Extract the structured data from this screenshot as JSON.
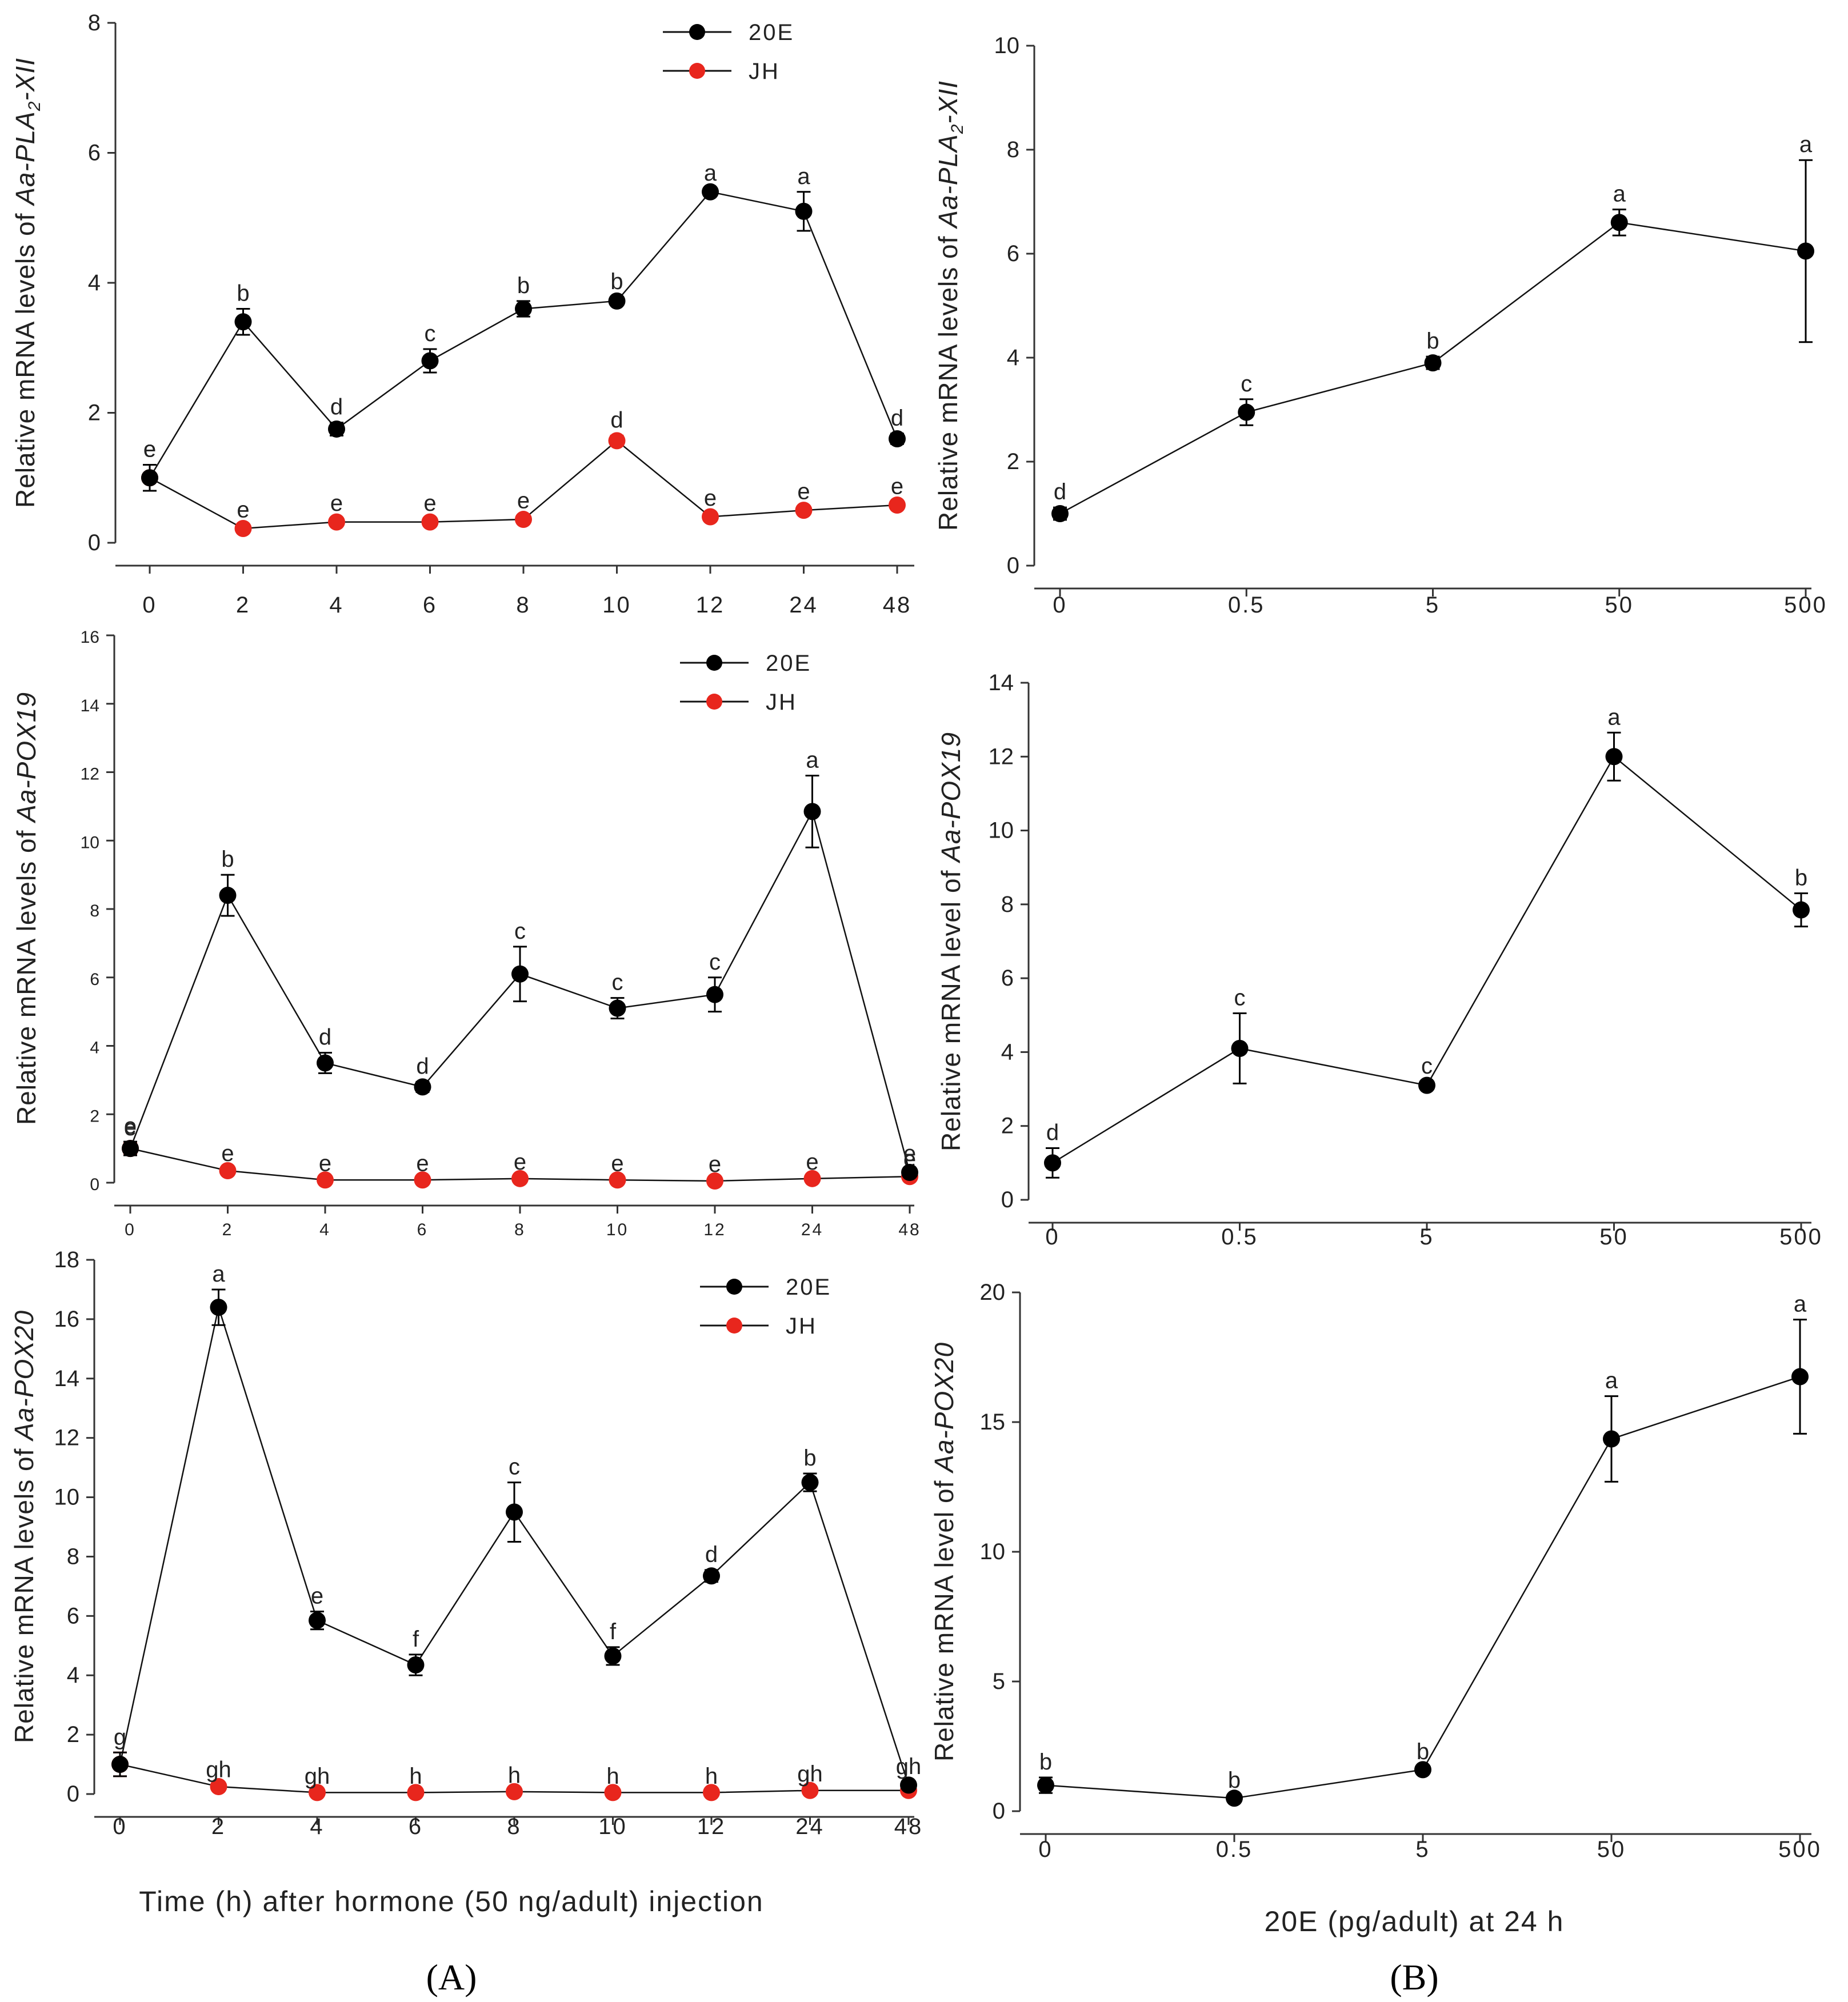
{
  "figure": {
    "panel_labels": [
      "(A)",
      "(B)"
    ],
    "colors": {
      "series_20E": "#000000",
      "series_JH": "#e8261d",
      "axis": "#333333"
    }
  },
  "chart_data": [
    {
      "id": "A1",
      "type": "line",
      "title": "",
      "ylabel_plain": "Relative mRNA levels of ",
      "ylabel_gene_prefix": "Aa-PLA",
      "ylabel_gene_sub": "2",
      "ylabel_gene_suffix": "-XII",
      "xlabel": "",
      "ylim": [
        0,
        8
      ],
      "yticks": [
        "0",
        "2",
        "4",
        "6",
        "8"
      ],
      "categories": [
        "0",
        "2",
        "4",
        "6",
        "8",
        "10",
        "12",
        "24",
        "48"
      ],
      "legend": [
        "20E",
        "JH"
      ],
      "series": [
        {
          "name": "20E",
          "values": [
            1.0,
            3.4,
            1.75,
            2.8,
            3.6,
            3.72,
            5.4,
            5.1,
            1.6
          ],
          "errors": [
            0.2,
            0.2,
            0.1,
            0.18,
            0.12,
            0.06,
            0.05,
            0.3,
            0.08
          ],
          "letters": [
            "e",
            "b",
            "d",
            "c",
            "b",
            "b",
            "a",
            "a",
            "d"
          ]
        },
        {
          "name": "JH",
          "values": [
            1.0,
            0.22,
            0.32,
            0.32,
            0.36,
            1.57,
            0.4,
            0.5,
            0.58
          ],
          "errors": [
            0.2,
            0.05,
            0.05,
            0.05,
            0.05,
            0.08,
            0.05,
            0.05,
            0.05
          ],
          "letters": [
            "e",
            "e",
            "e",
            "e",
            "e",
            "d",
            "e",
            "e",
            "e"
          ]
        }
      ]
    },
    {
      "id": "B1",
      "type": "line",
      "title": "",
      "ylabel_plain": "Relative mRNA levels of ",
      "ylabel_gene_prefix": "Aa-PLA",
      "ylabel_gene_sub": "2",
      "ylabel_gene_suffix": "-XII",
      "xlabel": "",
      "ylim": [
        0,
        10
      ],
      "yticks": [
        "0",
        "2",
        "4",
        "6",
        "8",
        "10"
      ],
      "categories": [
        "0",
        "0.5",
        "5",
        "50",
        "500"
      ],
      "series": [
        {
          "name": "20E",
          "values": [
            1.0,
            2.95,
            3.9,
            6.6,
            6.05
          ],
          "errors": [
            0.12,
            0.25,
            0.12,
            0.25,
            1.75
          ],
          "letters": [
            "d",
            "c",
            "b",
            "a",
            "a"
          ]
        }
      ]
    },
    {
      "id": "A2",
      "type": "line",
      "title": "",
      "ylabel_plain": "Relative mRNA levels of ",
      "ylabel_gene": "Aa-POX19",
      "xlabel": "",
      "ylim": [
        0,
        16
      ],
      "yticks": [
        "0",
        "2",
        "4",
        "6",
        "8",
        "10",
        "12",
        "14",
        "16"
      ],
      "categories": [
        "0",
        "2",
        "4",
        "6",
        "8",
        "10",
        "12",
        "24",
        "48"
      ],
      "legend": [
        "20E",
        "JH"
      ],
      "series": [
        {
          "name": "20E",
          "values": [
            1.0,
            8.4,
            3.5,
            2.8,
            6.1,
            5.1,
            5.5,
            10.85,
            0.3
          ],
          "errors": [
            0.2,
            0.6,
            0.3,
            0.15,
            0.8,
            0.3,
            0.5,
            1.05,
            0.1
          ],
          "letters": [
            "e",
            "b",
            "d",
            "d",
            "c",
            "c",
            "c",
            "a",
            "e"
          ]
        },
        {
          "name": "JH",
          "values": [
            1.0,
            0.35,
            0.08,
            0.08,
            0.12,
            0.08,
            0.05,
            0.12,
            0.18
          ],
          "errors": [
            0.15,
            0.05,
            0.03,
            0.03,
            0.03,
            0.03,
            0.03,
            0.03,
            0.05
          ],
          "letters": [
            "e",
            "e",
            "e",
            "e",
            "e",
            "e",
            "e",
            "e",
            "e"
          ]
        }
      ]
    },
    {
      "id": "B2",
      "type": "line",
      "title": "",
      "ylabel_plain": "Relative mRNA level of ",
      "ylabel_gene": "Aa-POX19",
      "xlabel": "",
      "ylim": [
        0,
        14
      ],
      "yticks": [
        "0",
        "2",
        "4",
        "6",
        "8",
        "10",
        "12",
        "14"
      ],
      "categories": [
        "0",
        "0.5",
        "5",
        "50",
        "500"
      ],
      "series": [
        {
          "name": "20E",
          "values": [
            1.0,
            4.1,
            3.1,
            12.0,
            7.85
          ],
          "errors": [
            0.4,
            0.95,
            0.1,
            0.65,
            0.45
          ],
          "letters": [
            "d",
            "c",
            "c",
            "a",
            "b"
          ]
        }
      ]
    },
    {
      "id": "A3",
      "type": "line",
      "title": "",
      "ylabel_plain": "Relative mRNA levels of ",
      "ylabel_gene": "Aa-POX20",
      "xlabel": "Time (h) after hormone (50 ng/adult) injection",
      "ylim": [
        0,
        18
      ],
      "yticks": [
        "0",
        "2",
        "4",
        "6",
        "8",
        "10",
        "12",
        "14",
        "16",
        "18"
      ],
      "categories": [
        "0",
        "2",
        "4",
        "6",
        "8",
        "10",
        "12",
        "24",
        "48"
      ],
      "legend": [
        "20E",
        "JH"
      ],
      "series": [
        {
          "name": "20E",
          "values": [
            1.0,
            16.4,
            5.85,
            4.35,
            9.5,
            4.65,
            7.35,
            10.5,
            0.3
          ],
          "errors": [
            0.4,
            0.6,
            0.3,
            0.35,
            1.0,
            0.3,
            0.2,
            0.3,
            0.1
          ],
          "letters": [
            "g",
            "a",
            "e",
            "f",
            "c",
            "f",
            "d",
            "b",
            "gh"
          ]
        },
        {
          "name": "JH",
          "values": [
            1.0,
            0.25,
            0.05,
            0.05,
            0.08,
            0.05,
            0.05,
            0.12,
            0.12
          ],
          "errors": [
            0.4,
            0.05,
            0.03,
            0.03,
            0.03,
            0.03,
            0.03,
            0.03,
            0.03
          ],
          "letters": [
            "",
            "gh",
            "gh",
            "h",
            "h",
            "h",
            "h",
            "gh",
            ""
          ]
        }
      ]
    },
    {
      "id": "B3",
      "type": "line",
      "title": "",
      "ylabel_plain": "Relative mRNA level of ",
      "ylabel_gene": "Aa-POX20",
      "xlabel": "20E (pg/adult) at 24 h",
      "ylim": [
        0,
        20
      ],
      "yticks": [
        "0",
        "5",
        "10",
        "15",
        "20"
      ],
      "categories": [
        "0",
        "0.5",
        "5",
        "50",
        "500"
      ],
      "series": [
        {
          "name": "20E",
          "values": [
            1.0,
            0.5,
            1.6,
            14.35,
            16.75
          ],
          "errors": [
            0.3,
            0.1,
            0.1,
            1.65,
            2.2
          ],
          "letters": [
            "b",
            "b",
            "b",
            "a",
            "a"
          ]
        }
      ]
    }
  ]
}
